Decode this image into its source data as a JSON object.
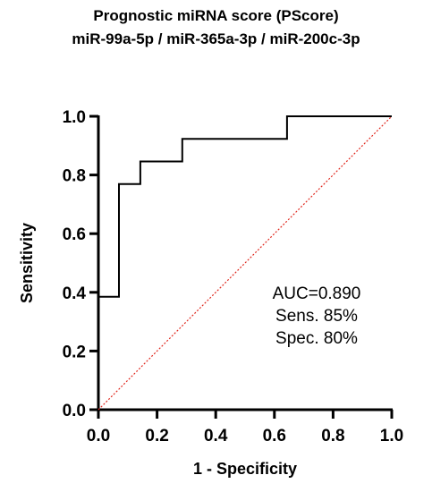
{
  "chart_data": {
    "type": "line",
    "title": "Prognostic miRNA score (PScore)",
    "subtitle": "miR-99a-5p / miR-365a-3p / miR-200c-3p",
    "xlabel": "1 - Specificity",
    "ylabel": "Sensitivity",
    "xlim": [
      0.0,
      1.0
    ],
    "ylim": [
      0.0,
      1.0
    ],
    "xticks": [
      "0.0",
      "0.2",
      "0.4",
      "0.6",
      "0.8",
      "1.0"
    ],
    "yticks": [
      "0.0",
      "0.2",
      "0.4",
      "0.6",
      "0.8",
      "1.0"
    ],
    "grid": false,
    "series": [
      {
        "style": "step",
        "color": "#000000",
        "x": [
          0.0,
          0.0,
          0.07,
          0.07,
          0.143,
          0.143,
          0.286,
          0.286,
          0.643,
          0.643,
          1.0
        ],
        "y": [
          0.0,
          0.385,
          0.385,
          0.769,
          0.769,
          0.846,
          0.846,
          0.923,
          0.923,
          1.0,
          1.0
        ]
      },
      {
        "style": "dotted",
        "color": "#e0281e",
        "x": [
          0.0,
          1.0
        ],
        "y": [
          0.0,
          1.0
        ]
      }
    ],
    "annotations": [
      "AUC=0.890",
      "Sens. 85%",
      "Spec. 80%"
    ]
  }
}
